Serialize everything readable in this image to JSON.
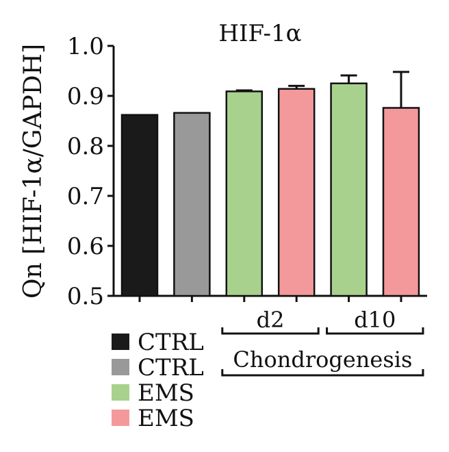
{
  "chart_data": {
    "type": "bar",
    "title": "HIF-1α",
    "ylabel": "Qn [HIF-1α/GAPDH]",
    "xlabel": "",
    "ylim": [
      0.5,
      1.0
    ],
    "yticks": [
      "0.5",
      "0.6",
      "0.7",
      "0.8",
      "0.9",
      "1.0"
    ],
    "bars": [
      {
        "group": "CTRL",
        "value": 0.862,
        "error": 0,
        "color": "#1a1a1a"
      },
      {
        "group": "CTRL",
        "value": 0.866,
        "error": 0,
        "color": "#999999"
      },
      {
        "group": "EMS",
        "value": 0.909,
        "error": 0.002,
        "color": "#a9d18e"
      },
      {
        "group": "EMS",
        "value": 0.914,
        "error": 0.006,
        "color": "#f4999b"
      },
      {
        "group": "EMS",
        "value": 0.925,
        "error": 0.016,
        "color": "#a9d18e"
      },
      {
        "group": "EMS",
        "value": 0.876,
        "error": 0.072,
        "color": "#f4999b"
      }
    ],
    "timepoints": [
      {
        "label": "d2",
        "bars": [
          2,
          3
        ]
      },
      {
        "label": "d10",
        "bars": [
          4,
          5
        ]
      }
    ],
    "condition_label": "Chondrogenesis",
    "legend": [
      {
        "label": "CTRL",
        "color": "#1a1a1a"
      },
      {
        "label": "CTRL",
        "color": "#999999"
      },
      {
        "label": "EMS",
        "color": "#a9d18e"
      },
      {
        "label": "EMS",
        "color": "#f4999b"
      }
    ],
    "grid": false,
    "legend_position": "bottom-left"
  }
}
